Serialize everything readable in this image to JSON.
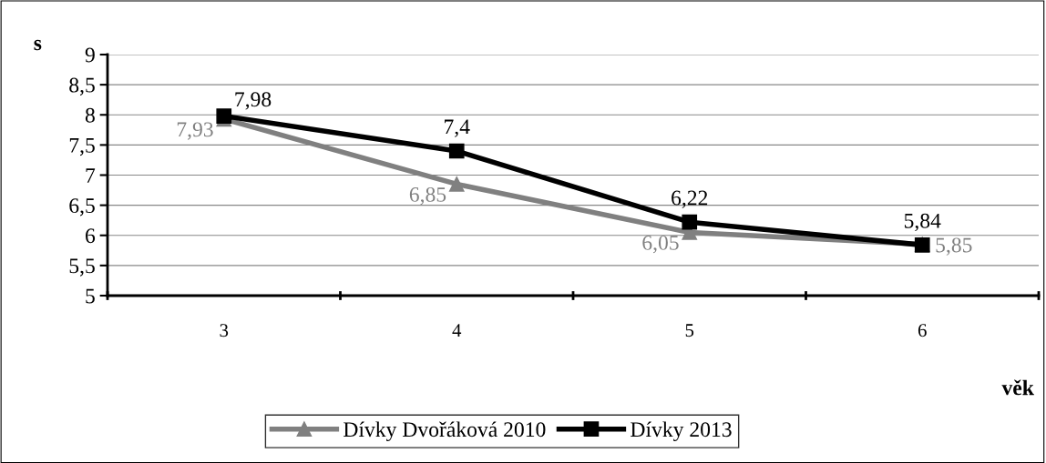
{
  "chart_data": {
    "type": "line",
    "xlabel": "věk",
    "ylabel": "s",
    "categories": [
      "3",
      "4",
      "5",
      "6"
    ],
    "series": [
      {
        "name": "Dívky Dvořáková 2010",
        "color": "#808080",
        "marker": "triangle",
        "values": [
          7.93,
          6.85,
          6.05,
          5.85
        ],
        "value_labels": [
          "7,93",
          "6,85",
          "6,05",
          "5,85"
        ]
      },
      {
        "name": "Dívky 2013",
        "color": "#000000",
        "marker": "square",
        "values": [
          7.98,
          7.4,
          6.22,
          5.84
        ],
        "value_labels": [
          "7,98",
          "7,4",
          "6,22",
          "5,84"
        ]
      }
    ],
    "ylim": [
      5,
      9
    ],
    "yticks": [
      5,
      {
        "value": 5.5,
        "label": "5,5"
      },
      6,
      {
        "value": 6.5,
        "label": "6,5"
      },
      7,
      {
        "value": 7.5,
        "label": "7,5"
      },
      8,
      {
        "value": 8.5,
        "label": "8,5"
      },
      9
    ],
    "grid": "y",
    "legend": "bottom",
    "line_style": "solid"
  }
}
